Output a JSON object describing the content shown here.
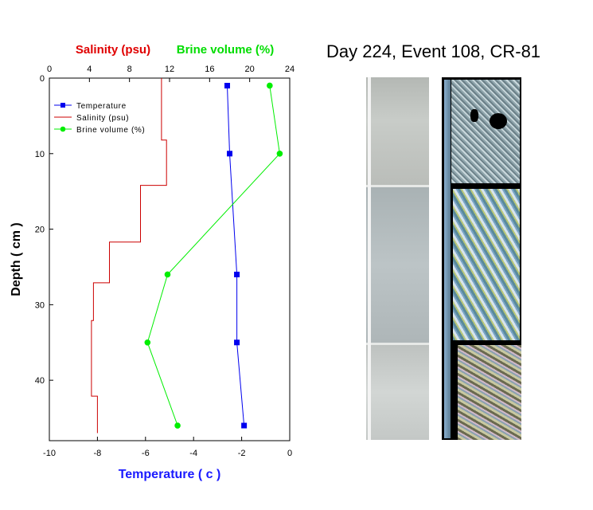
{
  "title": "Day 224, Event 108, CR-81",
  "colors": {
    "temperature": "#0000ee",
    "salinity": "#cc0000",
    "brine": "#00ee00",
    "salinity_label": "#e00000",
    "brine_label": "#00dd00",
    "temp_label": "#1a1aff"
  },
  "chart_data": {
    "type": "line",
    "axes": {
      "x_bottom": {
        "label": "Temperature ( c )",
        "range": [
          -10,
          0
        ],
        "ticks": [
          "-10",
          "-8",
          "-6",
          "-4",
          "-2",
          "0"
        ],
        "tick_values": [
          -10,
          -8,
          -6,
          -4,
          -2,
          0
        ]
      },
      "x_top": {
        "label_salinity": "Salinity (psu)",
        "label_brine": "Brine volume (%)",
        "range": [
          0,
          24
        ],
        "ticks": [
          "0",
          "4",
          "8",
          "12",
          "16",
          "20",
          "24"
        ],
        "tick_values": [
          0,
          4,
          8,
          12,
          16,
          20,
          24
        ]
      },
      "y_left": {
        "label": "Depth ( cm )",
        "range": [
          0,
          48
        ],
        "inverted": true,
        "ticks": [
          "0",
          "10",
          "20",
          "30",
          "40"
        ],
        "tick_values": [
          0,
          10,
          20,
          30,
          40
        ]
      }
    },
    "legend": {
      "placement": "top-left",
      "entries": [
        "Temperature",
        "Salinity (psu)",
        "Brine volume (%)"
      ]
    },
    "series": [
      {
        "name": "Temperature",
        "axis": "x_bottom",
        "marker": "square",
        "points": [
          [
            -2.6,
            1
          ],
          [
            -2.5,
            10
          ],
          [
            -2.2,
            26
          ],
          [
            -2.2,
            35
          ],
          [
            -1.9,
            46
          ]
        ]
      },
      {
        "name": "Salinity (psu)",
        "axis": "x_top",
        "marker": "none",
        "step": true,
        "points": [
          [
            11.2,
            0
          ],
          [
            11.2,
            8.2
          ],
          [
            11.7,
            8.2
          ],
          [
            11.7,
            14.2
          ],
          [
            9.1,
            14.2
          ],
          [
            9.1,
            21.7
          ],
          [
            6.0,
            21.7
          ],
          [
            6.0,
            27.1
          ],
          [
            4.4,
            27.1
          ],
          [
            4.4,
            32.1
          ],
          [
            4.2,
            32.1
          ],
          [
            4.2,
            42.1
          ],
          [
            4.8,
            42.1
          ],
          [
            4.8,
            47.0
          ]
        ]
      },
      {
        "name": "Brine volume (%)",
        "axis": "x_top",
        "marker": "circle",
        "points": [
          [
            22.0,
            1
          ],
          [
            23.0,
            10
          ],
          [
            11.8,
            26
          ],
          [
            9.8,
            35
          ],
          [
            12.8,
            46
          ]
        ]
      }
    ]
  }
}
